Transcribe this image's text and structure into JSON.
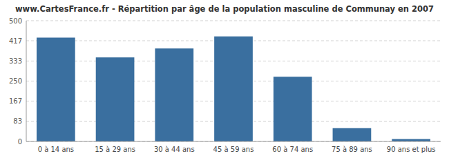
{
  "chart_data": {
    "type": "bar",
    "title": "www.CartesFrance.fr - Répartition par âge de la population masculine de Communay en 2007",
    "categories": [
      "0 à 14 ans",
      "15 à 29 ans",
      "30 à 44 ans",
      "45 à 59 ans",
      "60 à 74 ans",
      "75 à 89 ans",
      "90 ans et plus"
    ],
    "values": [
      430,
      348,
      385,
      435,
      268,
      55,
      10
    ],
    "color": "#3a6f9f",
    "ylim": [
      0,
      500
    ],
    "yticks": [
      0,
      83,
      167,
      250,
      333,
      417,
      500
    ],
    "grid": true
  }
}
